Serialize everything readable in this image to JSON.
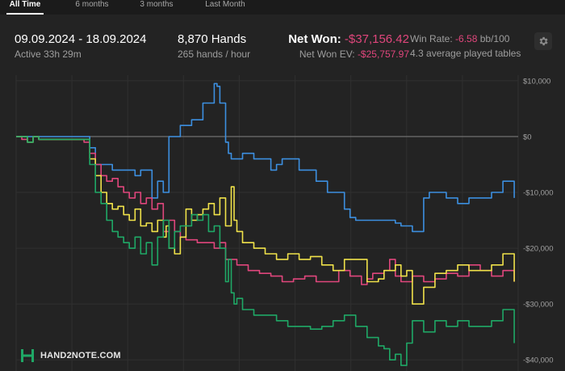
{
  "tabs": [
    {
      "label": "All Time",
      "active": true
    },
    {
      "label": "6 months",
      "active": false
    },
    {
      "label": "3 months",
      "active": false
    },
    {
      "label": "Last Month",
      "active": false
    }
  ],
  "summary": {
    "date_range": "09.09.2024 - 18.09.2024",
    "active_time": "Active 33h 29m",
    "hands": "8,870 Hands",
    "hands_rate": "265 hands / hour",
    "net_won_label": "Net Won:",
    "net_won_value": "-$37,156.42",
    "net_won_ev_label": "Net Won  EV:",
    "net_won_ev_value": "-$25,757.97",
    "win_rate_label": "Win Rate:",
    "win_rate_value": "-6.58",
    "win_rate_unit": "bb/100",
    "tables": "4.3 average played tables"
  },
  "branding": {
    "logo_text": "HAND2NOTE.COM"
  },
  "icons": {
    "settings": "gear-icon",
    "logo": "hand2note-logo-icon"
  },
  "colors": {
    "background": "#232323",
    "net_won_line": "#1fa866",
    "ev_line": "#f0e24a",
    "showdown_line": "#e0467c",
    "non_showdown_line": "#3c8fe0",
    "negative_text": "#e0467c"
  },
  "chart_data": {
    "type": "line",
    "title": "",
    "xlabel": "",
    "ylabel": "",
    "x_range": [
      0,
      8870
    ],
    "ylim": [
      -42000,
      11000
    ],
    "y_ticks": [
      10000,
      0,
      -10000,
      -20000,
      -30000,
      -40000
    ],
    "y_tick_labels": [
      "$10,000",
      "$0",
      "-$10,000",
      "-$20,000",
      "-$30,000",
      "-$40,000"
    ],
    "grid": true,
    "legend": "none",
    "series": [
      {
        "color": "#3c8fe0",
        "x": [
          0,
          200,
          300,
          400,
          500,
          1200,
          1300,
          1400,
          1700,
          2100,
          2200,
          2400,
          2500,
          2600,
          2700,
          2900,
          3100,
          3300,
          3500,
          3550,
          3600,
          3700,
          3750,
          3800,
          4000,
          4200,
          4500,
          4600,
          4700,
          5000,
          5300,
          5500,
          5800,
          5900,
          6000,
          6300,
          6500,
          6700,
          6800,
          7000,
          7200,
          7300,
          7600,
          7800,
          8000,
          8100,
          8400,
          8600,
          8800
        ],
        "y": [
          0,
          0,
          0,
          0,
          0,
          0,
          -2000,
          -5000,
          -6000,
          -7000,
          -6000,
          -11000,
          -8000,
          -10000,
          0,
          2000,
          3000,
          6000,
          9500,
          9000,
          6000,
          -1000,
          -3000,
          -4000,
          -3000,
          -4000,
          -6000,
          -5000,
          -4000,
          -6000,
          -8000,
          -10000,
          -13000,
          -14500,
          -15000,
          -15000,
          -15000,
          -15500,
          -16000,
          -17000,
          -11000,
          -10000,
          -11000,
          -12000,
          -11000,
          -11000,
          -10000,
          -8000,
          -11000
        ]
      },
      {
        "color": "#e0467c",
        "x": [
          0,
          100,
          200,
          300,
          400,
          500,
          1200,
          1300,
          1400,
          1500,
          1600,
          1700,
          1800,
          1900,
          2000,
          2100,
          2200,
          2300,
          2400,
          2500,
          2600,
          2700,
          2800,
          2900,
          3000,
          3200,
          3400,
          3500,
          3600,
          3700,
          3900,
          4100,
          4300,
          4500,
          4700,
          4900,
          5100,
          5300,
          5500,
          5700,
          5900,
          6100,
          6200,
          6300,
          6500,
          6600,
          6700,
          6800,
          7000,
          7200,
          7400,
          7600,
          7800,
          8000,
          8200,
          8400,
          8600,
          8800
        ],
        "y": [
          0,
          -500,
          -1000,
          0,
          -500,
          -500,
          -1000,
          -3000,
          -5000,
          -7000,
          -8000,
          -7500,
          -9000,
          -10000,
          -11000,
          -10000,
          -12000,
          -11000,
          -13000,
          -12000,
          -17000,
          -15000,
          -17000,
          -18000,
          -18500,
          -19000,
          -19000,
          -20000,
          -19000,
          -22000,
          -23000,
          -24000,
          -24500,
          -25000,
          -26000,
          -25500,
          -25000,
          -26000,
          -26000,
          -24000,
          -25000,
          -26500,
          -25500,
          -24500,
          -24000,
          -22000,
          -25000,
          -26000,
          -25000,
          -26000,
          -25500,
          -24500,
          -25000,
          -23000,
          -24000,
          -25000,
          -24000,
          -26000
        ]
      },
      {
        "color": "#f0e24a",
        "x": [
          0,
          100,
          200,
          300,
          400,
          500,
          1200,
          1300,
          1400,
          1500,
          1600,
          1700,
          1800,
          1900,
          2000,
          2100,
          2200,
          2300,
          2400,
          2500,
          2600,
          2650,
          2700,
          2800,
          2900,
          3000,
          3100,
          3200,
          3300,
          3400,
          3500,
          3600,
          3700,
          3800,
          3850,
          3900,
          4000,
          4200,
          4400,
          4600,
          4800,
          5000,
          5200,
          5400,
          5600,
          5800,
          6000,
          6200,
          6400,
          6500,
          6600,
          6700,
          6800,
          6900,
          7000,
          7200,
          7400,
          7600,
          7800,
          8000,
          8200,
          8400,
          8600,
          8800
        ],
        "y": [
          0,
          0,
          -1000,
          0,
          -500,
          -500,
          -500,
          -4000,
          -7000,
          -10000,
          -12000,
          -13000,
          -12500,
          -14000,
          -15000,
          -13000,
          -16000,
          -15500,
          -17000,
          -15000,
          -18000,
          -16000,
          -20000,
          -21000,
          -18000,
          -13000,
          -15000,
          -14000,
          -13000,
          -12000,
          -14000,
          -11000,
          -16000,
          -9000,
          -15000,
          -17000,
          -19000,
          -20000,
          -21000,
          -22000,
          -21000,
          -22000,
          -21500,
          -23000,
          -24000,
          -22000,
          -22000,
          -26000,
          -25500,
          -24000,
          -24000,
          -23000,
          -25000,
          -24000,
          -30000,
          -27000,
          -24500,
          -24000,
          -23000,
          -24000,
          -24000,
          -23000,
          -21000,
          -26000
        ]
      },
      {
        "color": "#1fa866",
        "x": [
          0,
          200,
          300,
          400,
          500,
          1200,
          1300,
          1400,
          1500,
          1600,
          1700,
          1800,
          1900,
          2000,
          2100,
          2200,
          2300,
          2400,
          2500,
          2600,
          2700,
          2800,
          2900,
          3000,
          3100,
          3200,
          3300,
          3400,
          3500,
          3600,
          3700,
          3750,
          3800,
          3850,
          3900,
          4000,
          4200,
          4400,
          4600,
          4800,
          5000,
          5200,
          5400,
          5600,
          5800,
          6000,
          6200,
          6400,
          6500,
          6600,
          6700,
          6800,
          6900,
          7000,
          7200,
          7400,
          7600,
          7800,
          8000,
          8200,
          8400,
          8600,
          8800
        ],
        "y": [
          0,
          -1000,
          0,
          -500,
          -500,
          -500,
          -5000,
          -10000,
          -12000,
          -15000,
          -17000,
          -18000,
          -19000,
          -20000,
          -18000,
          -21000,
          -19000,
          -23000,
          -18000,
          -15000,
          -20000,
          -17000,
          -16000,
          -16000,
          -14000,
          -15000,
          -14000,
          -17000,
          -16000,
          -20000,
          -26000,
          -22000,
          -28000,
          -30000,
          -29000,
          -31000,
          -32000,
          -32000,
          -33000,
          -34000,
          -34000,
          -34500,
          -34000,
          -33000,
          -32000,
          -34000,
          -36000,
          -37500,
          -38000,
          -40000,
          -39000,
          -41000,
          -37000,
          -33000,
          -35000,
          -33000,
          -34000,
          -33000,
          -34000,
          -34000,
          -33000,
          -31000,
          -37000
        ]
      }
    ]
  }
}
